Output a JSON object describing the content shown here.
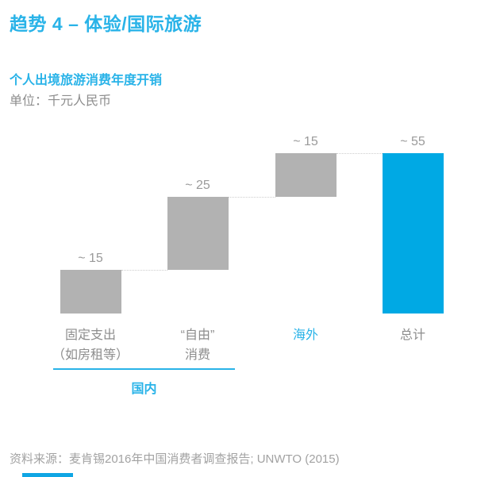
{
  "header": {
    "title": "趋势 4 – 体验/国际旅游",
    "chart_title": "个人出境旅游消费年度开销",
    "unit_label": "单位：千元人民币"
  },
  "footer": {
    "source": "资料来源：麦肯锡2016年中国消费者调查报告; UNWTO (2015)"
  },
  "colors": {
    "accent_cyan": "#29b3e8",
    "bar_blue": "#00a9e4",
    "bar_gray": "#b2b2b2",
    "text_gray": "#8d8d8d",
    "value_label_gray": "#9a9a9a",
    "connector_gray": "#cdcdcd",
    "source_gray": "#a2a2a2"
  },
  "chart_data": {
    "type": "bar",
    "subtype": "waterfall",
    "title": "个人出境旅游消费年度开销",
    "unit": "千元人民币",
    "categories": [
      "固定支出（如房租等）",
      "“自由”消费",
      "海外",
      "总计"
    ],
    "category_lines": [
      [
        "固定支出",
        "（如房租等）"
      ],
      [
        "“自由”",
        "消费"
      ],
      [
        "海外"
      ],
      [
        "总计"
      ]
    ],
    "category_colors": [
      "#8d8d8d",
      "#8d8d8d",
      "#29b3e8",
      "#8d8d8d"
    ],
    "values": [
      15,
      25,
      15,
      55
    ],
    "value_labels": [
      "~ 15",
      "~ 25",
      "~ 15",
      "~ 55"
    ],
    "roles": [
      "increase",
      "increase",
      "increase",
      "total"
    ],
    "bar_colors": [
      "#b2b2b2",
      "#b2b2b2",
      "#b2b2b2",
      "#00a9e4"
    ],
    "group": {
      "label": "国内",
      "from": 0,
      "to": 1
    },
    "ylim": [
      0,
      55
    ],
    "legend": "none",
    "grid": false
  }
}
